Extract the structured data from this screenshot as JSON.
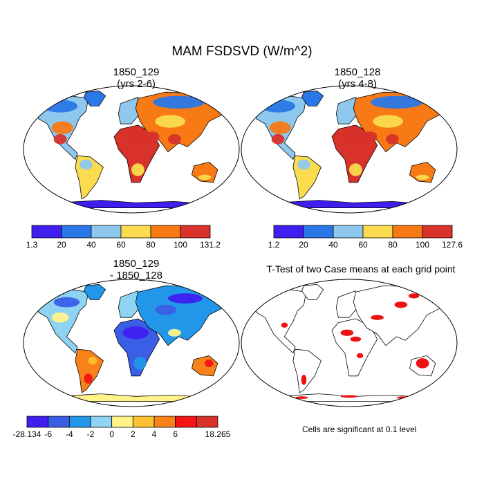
{
  "figure": {
    "title": "MAM FSDSVD (W/m^2)",
    "significance_note": "Cells are significant at 0.1 level"
  },
  "colors": {
    "land_outline": "#000000",
    "significant": "#ee1111"
  },
  "chart_data": [
    {
      "type": "heatmap",
      "projection": "Robinson",
      "title_line1": "1850_129",
      "title_line2": "(yrs 2-6)",
      "variable": "FSDSVD",
      "units": "W/m^2",
      "colorbar": {
        "tick_labels": [
          "1.3",
          "20",
          "40",
          "60",
          "80",
          "100",
          "131.2"
        ],
        "range": [
          1.3,
          131.2
        ],
        "levels": [
          20,
          40,
          60,
          80,
          100
        ],
        "colors": [
          "#3f1ff0",
          "#2a78e8",
          "#8ec8ee",
          "#fbdc4e",
          "#f77a14",
          "#d8322a"
        ]
      },
      "regions": [
        {
          "name": "Antarctica",
          "level": 0
        },
        {
          "name": "Arctic / Greenland",
          "level": 1
        },
        {
          "name": "Boreal Eurasia",
          "level": 1
        },
        {
          "name": "Northern North America",
          "level": 1
        },
        {
          "name": "Europe",
          "level": 2
        },
        {
          "name": "Southern United States",
          "level": 4
        },
        {
          "name": "Sahara / Arabia",
          "level": 5
        },
        {
          "name": "Southern Africa",
          "level": 3
        },
        {
          "name": "Amazon",
          "level": 2
        },
        {
          "name": "Australia interior",
          "level": 4
        }
      ]
    },
    {
      "type": "heatmap",
      "projection": "Robinson",
      "title_line1": "1850_128",
      "title_line2": "(yrs 4-8)",
      "variable": "FSDSVD",
      "units": "W/m^2",
      "colorbar": {
        "tick_labels": [
          "1.2",
          "20",
          "40",
          "60",
          "80",
          "100",
          "127.6"
        ],
        "range": [
          1.2,
          127.6
        ],
        "levels": [
          20,
          40,
          60,
          80,
          100
        ],
        "colors": [
          "#3f1ff0",
          "#2a78e8",
          "#8ec8ee",
          "#fbdc4e",
          "#f77a14",
          "#d8322a"
        ]
      },
      "regions": [
        {
          "name": "Antarctica",
          "level": 0
        },
        {
          "name": "Arctic / Greenland",
          "level": 1
        },
        {
          "name": "Boreal Eurasia",
          "level": 1
        },
        {
          "name": "Northern North America",
          "level": 1
        },
        {
          "name": "Europe",
          "level": 2
        },
        {
          "name": "Southern United States",
          "level": 4
        },
        {
          "name": "Sahara / Arabia",
          "level": 5
        },
        {
          "name": "Southern Africa",
          "level": 3
        },
        {
          "name": "Amazon",
          "level": 2
        },
        {
          "name": "Australia interior",
          "level": 4
        }
      ]
    },
    {
      "type": "heatmap",
      "projection": "Robinson",
      "title_line1": "1850_129",
      "title_line2": "- 1850_128",
      "variable": "FSDSVD difference",
      "units": "W/m^2",
      "colorbar": {
        "tick_labels": [
          "-28.134",
          "-6",
          "-4",
          "-2",
          "0",
          "2",
          "4",
          "6",
          "18.265"
        ],
        "range": [
          -28.134,
          18.265
        ],
        "levels": [
          -8,
          -6,
          -4,
          -2,
          0,
          2,
          4,
          6,
          8
        ],
        "colors": [
          "#3f1ff0",
          "#3a5ee6",
          "#2297ea",
          "#8ed4f2",
          "#fff38a",
          "#fdc233",
          "#f7821a",
          "#f51414",
          "#d8322a"
        ]
      },
      "regions": [
        {
          "name": "Antarctica",
          "level": 4
        },
        {
          "name": "Northern Africa",
          "level": 1
        },
        {
          "name": "Siberia",
          "level": 1
        },
        {
          "name": "North America",
          "level": 2
        },
        {
          "name": "South America",
          "level": 6
        },
        {
          "name": "Australia",
          "level": 6
        }
      ]
    },
    {
      "type": "heatmap",
      "projection": "Robinson",
      "title": "T-Test of two Case means at each grid point",
      "significance_level": 0.1,
      "significant_regions": [
        "Sahara",
        "Central Asia",
        "Eastern Siberia",
        "Australia",
        "Southern South America",
        "Southern Africa",
        "Antarctic coast"
      ]
    }
  ]
}
